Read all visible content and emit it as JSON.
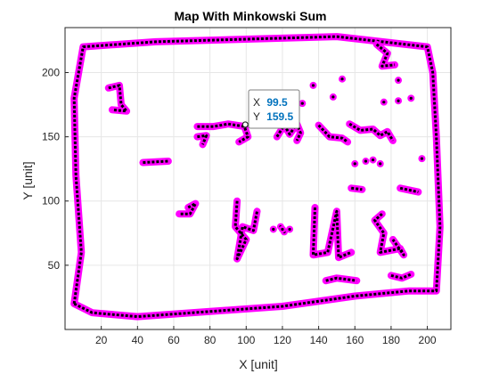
{
  "chart_data": {
    "type": "scatter",
    "title": "Map With Minkowski Sum",
    "xlabel": "X [unit]",
    "ylabel": "Y [unit]",
    "xlim": [
      0,
      213
    ],
    "ylim": [
      0,
      235
    ],
    "xticks": [
      20,
      40,
      60,
      80,
      100,
      120,
      140,
      160,
      180,
      200
    ],
    "yticks": [
      50,
      100,
      150,
      200
    ],
    "grid": true,
    "colors": {
      "inflated": "#ff00ff",
      "occupied": "#000000",
      "grid": "#e6e6e6",
      "axes": "#262626",
      "datatip_value": "#0072bd"
    },
    "datatip": {
      "x_label": "X",
      "y_label": "Y",
      "x_value": "99.5",
      "y_value": "159.5",
      "x": 99.5,
      "y": 159.5
    },
    "series": [
      {
        "name": "",
        "kind": "outer-boundary",
        "paths": [
          [
            [
              5,
              20
            ],
            [
              15,
              13
            ],
            [
              40,
              10
            ],
            [
              80,
              14
            ],
            [
              120,
              18
            ],
            [
              160,
              26
            ],
            [
              190,
              30
            ],
            [
              205,
              30
            ],
            [
              207,
              80
            ],
            [
              205,
              150
            ],
            [
              203,
              200
            ],
            [
              200,
              220
            ],
            [
              150,
              228
            ],
            [
              100,
              226
            ],
            [
              50,
              224
            ],
            [
              10,
              220
            ],
            [
              5,
              180
            ],
            [
              6,
              120
            ],
            [
              9,
              60
            ],
            [
              5,
              20
            ]
          ]
        ]
      },
      {
        "name": "",
        "kind": "obstacles",
        "paths": [
          [
            [
              24,
              188
            ],
            [
              30,
              190
            ],
            [
              31,
              175
            ],
            [
              34,
              170
            ],
            [
              26,
              171
            ]
          ],
          [
            [
              43,
              130
            ],
            [
              57,
              131
            ]
          ],
          [
            [
              73,
              158
            ],
            [
              82,
              158
            ],
            [
              90,
              160
            ],
            [
              99,
              158
            ],
            [
              101,
              150
            ],
            [
              96,
              146
            ]
          ],
          [
            [
              73,
              150
            ],
            [
              78,
              151
            ],
            [
              76,
              144
            ]
          ],
          [
            [
              117,
              150
            ],
            [
              121,
              159
            ],
            [
              124,
              152
            ],
            [
              128,
              160
            ],
            [
              130,
              153
            ],
            [
              128,
              147
            ]
          ],
          [
            [
              140,
              159
            ],
            [
              146,
              150
            ],
            [
              153,
              149
            ],
            [
              156,
              146
            ]
          ],
          [
            [
              157,
              160
            ],
            [
              163,
              155
            ],
            [
              170,
              156
            ],
            [
              174,
              151
            ],
            [
              178,
              154
            ],
            [
              181,
              147
            ]
          ],
          [
            [
              158,
              110
            ],
            [
              164,
              109
            ]
          ],
          [
            [
              185,
              110
            ],
            [
              195,
              107
            ]
          ],
          [
            [
              68,
              95
            ],
            [
              72,
              98
            ],
            [
              69,
              90
            ],
            [
              63,
              90
            ]
          ],
          [
            [
              95,
              100
            ],
            [
              94,
              80
            ],
            [
              100,
              70
            ],
            [
              95,
              55
            ],
            [
              98,
              80
            ],
            [
              104,
              77
            ],
            [
              106,
              92
            ]
          ],
          [
            [
              138,
              95
            ],
            [
              137,
              58
            ],
            [
              145,
              60
            ],
            [
              150,
              92
            ],
            [
              151,
              56
            ],
            [
              158,
              60
            ]
          ],
          [
            [
              175,
              90
            ],
            [
              171,
              85
            ],
            [
              176,
              75
            ],
            [
              174,
              60
            ],
            [
              185,
              63
            ],
            [
              187,
              58
            ],
            [
              181,
              70
            ]
          ],
          [
            [
              144,
              38
            ],
            [
              150,
              40
            ],
            [
              161,
              38
            ]
          ],
          [
            [
              180,
              42
            ],
            [
              186,
              40
            ],
            [
              191,
              43
            ]
          ],
          [
            [
              172,
              222
            ],
            [
              178,
              215
            ],
            [
              175,
              205
            ],
            [
              182,
              206
            ]
          ]
        ]
      },
      {
        "name": "",
        "kind": "points",
        "points": [
          [
            119,
            80
          ],
          [
            121,
            76
          ],
          [
            120,
            78
          ],
          [
            124,
            78
          ],
          [
            115,
            78
          ],
          [
            160,
            129
          ],
          [
            166,
            131
          ],
          [
            170,
            132
          ],
          [
            174,
            129
          ],
          [
            197,
            133
          ],
          [
            184,
            178
          ],
          [
            148,
            181
          ],
          [
            137,
            190
          ],
          [
            153,
            195
          ],
          [
            131,
            176
          ],
          [
            176,
            177
          ],
          [
            191,
            180
          ],
          [
            184,
            194
          ]
        ]
      }
    ]
  }
}
